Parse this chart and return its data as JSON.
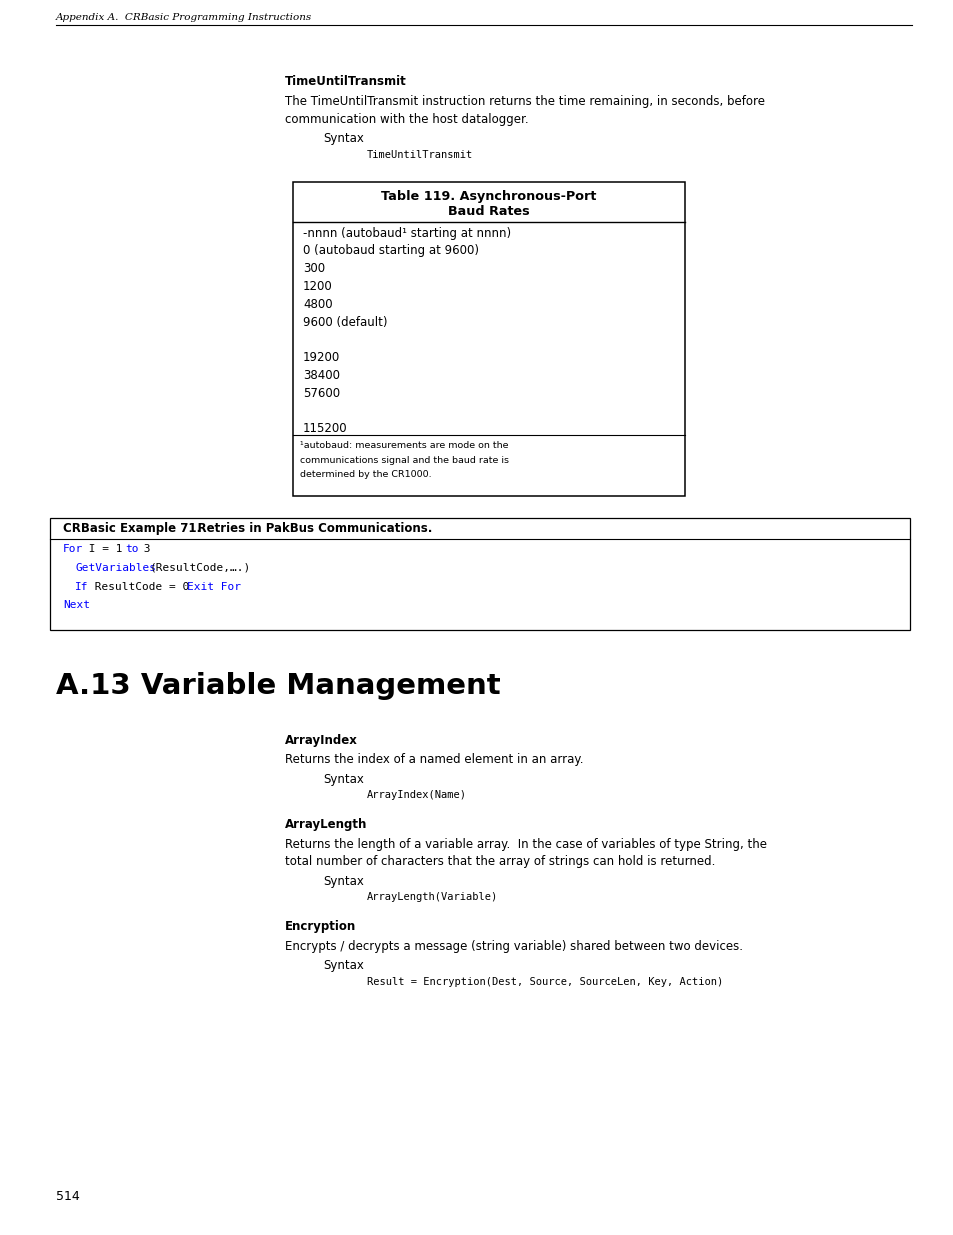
{
  "bg_color": "#ffffff",
  "page_width": 9.54,
  "page_height": 12.35,
  "header_text": "Appendix A.  CRBasic Programming Instructions",
  "footer_page": "514",
  "section_title": "A.13 Variable Management",
  "time_until_transmit_bold": "TimeUntilTransmit",
  "time_until_transmit_desc": "The TimeUntilTransmit instruction returns the time remaining, in seconds, before\ncommunication with the host datalogger.",
  "time_until_transmit_syntax_label": "Syntax",
  "time_until_transmit_syntax_code": "TimeUntilTransmit",
  "table_title_line1": "Table 119. Asynchronous-Port",
  "table_title_line2": "Baud Rates",
  "table_rows": [
    "-nnnn (autobaud¹ starting at nnnn)",
    "0 (autobaud starting at 9600)",
    "300",
    "1200",
    "4800",
    "9600 (default)",
    "",
    "19200",
    "38400",
    "57600",
    "",
    "115200"
  ],
  "table_footnote_line1": "¹autobaud: measurements are mode on the",
  "table_footnote_line2": "communications signal and the baud rate is",
  "table_footnote_line3": "determined by the CR1000.",
  "example_box_label": "CRBasic Example 71.",
  "example_box_title": "    Retries in PakBus Communications.",
  "arrayindex_bold": "ArrayIndex",
  "arrayindex_desc": "Returns the index of a named element in an array.",
  "arrayindex_syntax_label": "Syntax",
  "arrayindex_syntax_code": "ArrayIndex(Name)",
  "arraylength_bold": "ArrayLength",
  "arraylength_desc_line1": "Returns the length of a variable array.  In the case of variables of type String, the",
  "arraylength_desc_line2": "total number of characters that the array of strings can hold is returned.",
  "arraylength_syntax_label": "Syntax",
  "arraylength_syntax_code": "ArrayLength(Variable)",
  "encryption_bold": "Encryption",
  "encryption_desc": "Encrypts / decrypts a message (string variable) shared between two devices.",
  "encryption_syntax_label": "Syntax",
  "encryption_syntax_code": "Result = Encryption(Dest, Source, SourceLen, Key, Action)"
}
